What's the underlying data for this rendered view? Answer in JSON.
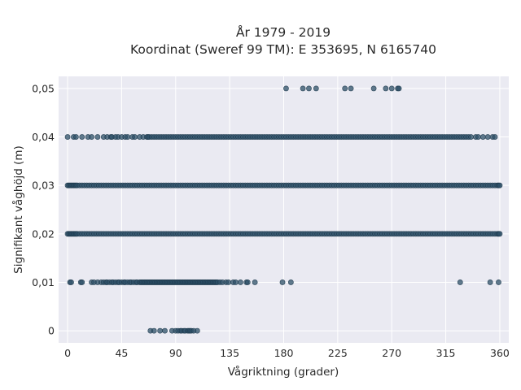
{
  "chart_data": {
    "type": "scatter",
    "title_line1": "År 1979 - 2019",
    "title_line2": "Koordinat (Sweref 99 TM): E 353695, N 6165740",
    "xlabel": "Vågriktning (grader)",
    "ylabel": "Signifikant våghöjd (m)",
    "xlim": [
      -7.5,
      367.5
    ],
    "ylim": [
      -0.0025,
      0.0525
    ],
    "xticks": [
      0,
      45,
      90,
      135,
      180,
      225,
      270,
      315,
      360
    ],
    "xtick_labels": [
      "0",
      "45",
      "90",
      "135",
      "180",
      "225",
      "270",
      "315",
      "360"
    ],
    "yticks": [
      0,
      0.01,
      0.02,
      0.03,
      0.04,
      0.05
    ],
    "ytick_labels": [
      "0",
      "0,01",
      "0,02",
      "0,03",
      "0,04",
      "0,05"
    ],
    "grid": true,
    "background_color": "#eaeaf2",
    "point_color": "#2c4f67",
    "series": [
      {
        "y": 0,
        "x": [
          69,
          72,
          77,
          81,
          87,
          90,
          92,
          94,
          95,
          97,
          98,
          100,
          101,
          102,
          103,
          105,
          108
        ]
      },
      {
        "y": 0.01,
        "x": [
          2,
          3,
          11,
          12,
          20,
          22,
          25,
          28,
          30,
          32,
          33,
          35,
          37,
          38,
          40,
          42,
          43,
          45,
          47,
          48,
          50,
          52,
          53,
          55,
          57,
          58,
          60,
          61,
          62,
          63,
          64,
          65,
          66,
          67,
          68,
          69,
          70,
          71,
          72,
          73,
          74,
          75,
          76,
          77,
          78,
          79,
          80,
          81,
          82,
          83,
          84,
          85,
          86,
          87,
          88,
          89,
          90,
          91,
          92,
          93,
          94,
          95,
          96,
          97,
          98,
          99,
          100,
          101,
          102,
          103,
          104,
          105,
          106,
          107,
          108,
          109,
          110,
          111,
          112,
          113,
          114,
          115,
          116,
          117,
          118,
          119,
          120,
          121,
          122,
          123,
          124,
          125,
          127,
          129,
          132,
          134,
          138,
          140,
          144,
          149,
          150,
          156,
          179,
          186,
          327,
          352,
          359
        ]
      },
      {
        "y": 0.02,
        "x": [
          0,
          1,
          2,
          3,
          4,
          5,
          6,
          7,
          8,
          10,
          12,
          14,
          16,
          18,
          20,
          22,
          24,
          26,
          28,
          30,
          32,
          34,
          36,
          38,
          40,
          42,
          44,
          46,
          48,
          50,
          52,
          54,
          56,
          58,
          60,
          62,
          64,
          66,
          68,
          70,
          72,
          74,
          76,
          78,
          80,
          82,
          84,
          86,
          88,
          90,
          92,
          94,
          96,
          98,
          100,
          102,
          104,
          106,
          108,
          110,
          112,
          114,
          116,
          118,
          120,
          122,
          124,
          126,
          128,
          130,
          132,
          134,
          136,
          138,
          140,
          142,
          144,
          146,
          148,
          150,
          152,
          154,
          156,
          158,
          160,
          162,
          164,
          166,
          168,
          170,
          172,
          174,
          176,
          178,
          180,
          182,
          184,
          186,
          188,
          190,
          192,
          194,
          196,
          198,
          200,
          202,
          204,
          206,
          208,
          210,
          212,
          214,
          216,
          218,
          220,
          222,
          224,
          226,
          228,
          230,
          232,
          234,
          236,
          238,
          240,
          242,
          244,
          246,
          248,
          250,
          252,
          254,
          256,
          258,
          260,
          262,
          264,
          266,
          268,
          270,
          272,
          274,
          276,
          278,
          280,
          282,
          284,
          286,
          288,
          290,
          292,
          294,
          296,
          298,
          300,
          302,
          304,
          306,
          308,
          310,
          312,
          314,
          316,
          318,
          320,
          322,
          324,
          326,
          328,
          330,
          332,
          334,
          336,
          338,
          340,
          342,
          344,
          346,
          348,
          350,
          352,
          354,
          356,
          358,
          359,
          360
        ]
      },
      {
        "y": 0.03,
        "x": [
          0,
          1,
          2,
          3,
          4,
          5,
          6,
          7,
          8,
          10,
          12,
          14,
          16,
          18,
          20,
          22,
          24,
          26,
          28,
          30,
          32,
          34,
          36,
          38,
          40,
          42,
          44,
          46,
          48,
          50,
          52,
          54,
          56,
          58,
          60,
          62,
          64,
          66,
          68,
          70,
          72,
          74,
          76,
          78,
          80,
          82,
          84,
          86,
          88,
          90,
          92,
          94,
          96,
          98,
          100,
          102,
          104,
          106,
          108,
          110,
          112,
          114,
          116,
          118,
          120,
          122,
          124,
          126,
          128,
          130,
          132,
          134,
          136,
          138,
          140,
          142,
          144,
          146,
          148,
          150,
          152,
          154,
          156,
          158,
          160,
          162,
          164,
          166,
          168,
          170,
          172,
          174,
          176,
          178,
          180,
          182,
          184,
          186,
          188,
          190,
          192,
          194,
          196,
          198,
          200,
          202,
          204,
          206,
          208,
          210,
          212,
          214,
          216,
          218,
          220,
          222,
          224,
          226,
          228,
          230,
          232,
          234,
          236,
          238,
          240,
          242,
          244,
          246,
          248,
          250,
          252,
          254,
          256,
          258,
          260,
          262,
          264,
          266,
          268,
          270,
          272,
          274,
          276,
          278,
          280,
          282,
          284,
          286,
          288,
          290,
          292,
          294,
          296,
          298,
          300,
          302,
          304,
          306,
          308,
          310,
          312,
          314,
          316,
          318,
          320,
          322,
          324,
          326,
          328,
          330,
          332,
          334,
          336,
          338,
          340,
          342,
          344,
          346,
          348,
          350,
          352,
          354,
          356,
          358,
          359,
          360
        ]
      },
      {
        "y": 0.04,
        "x": [
          0,
          5,
          7,
          12,
          17,
          20,
          25,
          30,
          33,
          36,
          37,
          40,
          42,
          45,
          48,
          50,
          54,
          56,
          60,
          63,
          66,
          67,
          68,
          70,
          72,
          74,
          76,
          78,
          80,
          82,
          84,
          86,
          88,
          90,
          92,
          94,
          96,
          98,
          100,
          102,
          104,
          106,
          108,
          110,
          112,
          114,
          116,
          118,
          120,
          122,
          124,
          126,
          128,
          130,
          132,
          134,
          136,
          138,
          140,
          142,
          144,
          146,
          148,
          150,
          152,
          154,
          156,
          158,
          160,
          162,
          164,
          166,
          168,
          170,
          172,
          174,
          176,
          178,
          180,
          182,
          184,
          186,
          188,
          190,
          192,
          194,
          196,
          198,
          200,
          202,
          204,
          206,
          208,
          210,
          212,
          214,
          216,
          218,
          220,
          222,
          224,
          226,
          228,
          230,
          232,
          234,
          236,
          238,
          240,
          242,
          244,
          246,
          248,
          250,
          252,
          254,
          256,
          258,
          260,
          262,
          264,
          266,
          268,
          270,
          272,
          274,
          276,
          278,
          280,
          282,
          284,
          286,
          288,
          290,
          292,
          294,
          296,
          298,
          300,
          302,
          304,
          306,
          308,
          310,
          312,
          314,
          316,
          318,
          320,
          322,
          324,
          326,
          328,
          330,
          332,
          334,
          336,
          340,
          342,
          346,
          350,
          354,
          356
        ]
      },
      {
        "y": 0.05,
        "x": [
          182,
          196,
          201,
          207,
          231,
          236,
          255,
          265,
          270,
          275,
          276
        ]
      }
    ]
  }
}
